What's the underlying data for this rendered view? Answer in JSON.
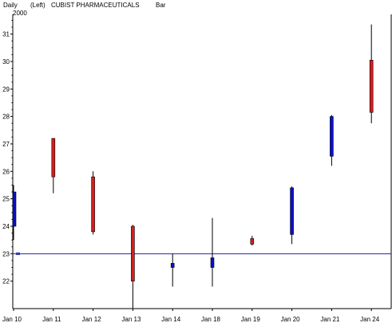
{
  "header": {
    "period": "Daily",
    "axis_side": "(Left)",
    "symbol_name": "CUBIST PHARMACEUTICALS",
    "chart_style": "Bar",
    "year": "2000"
  },
  "chart_data": {
    "type": "candlestick",
    "title": "CUBIST PHARMACEUTICALS",
    "xlabel": "",
    "ylabel": "",
    "ylim": [
      21.0,
      31.6
    ],
    "y_ticks": [
      22,
      23,
      24,
      25,
      26,
      27,
      28,
      29,
      30,
      31
    ],
    "grid": false,
    "reference_line": 23.0,
    "categories": [
      "Jan 10",
      "Jan 11",
      "Jan 12",
      "Jan 13",
      "Jan 14",
      "Jan 18",
      "Jan 19",
      "Jan 20",
      "Jan 21",
      "Jan 24"
    ],
    "candles": [
      {
        "date": "Jan 10",
        "open": 24.0,
        "high": 25.5,
        "low": 23.5,
        "close": 25.25,
        "direction": "up"
      },
      {
        "date": "Jan 11",
        "open": 27.2,
        "high": 27.2,
        "low": 25.2,
        "close": 25.8,
        "direction": "down"
      },
      {
        "date": "Jan 12",
        "open": 25.8,
        "high": 26.0,
        "low": 23.7,
        "close": 23.8,
        "direction": "down"
      },
      {
        "date": "Jan 13",
        "open": 24.0,
        "high": 24.05,
        "low": 21.0,
        "close": 22.0,
        "direction": "down"
      },
      {
        "date": "Jan 14",
        "open": 22.5,
        "high": 23.0,
        "low": 21.8,
        "close": 22.65,
        "direction": "up"
      },
      {
        "date": "Jan 18",
        "open": 22.5,
        "high": 24.3,
        "low": 21.8,
        "close": 22.85,
        "direction": "up"
      },
      {
        "date": "Jan 19",
        "open": 23.55,
        "high": 23.65,
        "low": 23.3,
        "close": 23.35,
        "direction": "down"
      },
      {
        "date": "Jan 20",
        "open": 23.7,
        "high": 25.45,
        "low": 23.35,
        "close": 25.4,
        "direction": "up"
      },
      {
        "date": "Jan 21",
        "open": 26.55,
        "high": 28.05,
        "low": 26.2,
        "close": 28.0,
        "direction": "up"
      },
      {
        "date": "Jan 24",
        "open": 30.05,
        "high": 31.35,
        "low": 27.75,
        "close": 28.15,
        "direction": "down"
      }
    ],
    "colors": {
      "up": "#0a10c8",
      "down": "#d41e1e",
      "reference_line": "#2020a0",
      "axis": "#000000"
    }
  }
}
